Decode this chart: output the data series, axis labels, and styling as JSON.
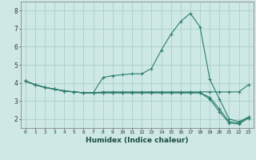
{
  "xlabel": "Humidex (Indice chaleur)",
  "background_color": "#cde8e5",
  "line_color": "#2e7d6e",
  "grid_color": "#aacfcb",
  "xlim": [
    -0.5,
    23.5
  ],
  "ylim": [
    1.5,
    8.5
  ],
  "yticks": [
    2,
    3,
    4,
    5,
    6,
    7,
    8
  ],
  "xticks": [
    0,
    1,
    2,
    3,
    4,
    5,
    6,
    7,
    8,
    9,
    10,
    11,
    12,
    13,
    14,
    15,
    16,
    17,
    18,
    19,
    20,
    21,
    22,
    23
  ],
  "line_main": [
    4.1,
    3.9,
    3.75,
    3.65,
    3.55,
    3.5,
    3.45,
    3.45,
    4.3,
    4.4,
    4.45,
    4.5,
    4.5,
    4.8,
    5.8,
    6.7,
    7.4,
    7.85,
    7.1,
    4.2,
    3.1,
    2.0,
    1.85,
    2.1
  ],
  "line_flat": [
    4.1,
    3.9,
    3.75,
    3.65,
    3.55,
    3.5,
    3.45,
    3.45,
    3.5,
    3.5,
    3.5,
    3.5,
    3.5,
    3.5,
    3.5,
    3.5,
    3.5,
    3.5,
    3.5,
    3.5,
    3.5,
    3.5,
    3.5,
    3.9
  ],
  "line_dec1": [
    4.1,
    3.9,
    3.75,
    3.65,
    3.55,
    3.5,
    3.45,
    3.45,
    3.45,
    3.45,
    3.45,
    3.45,
    3.45,
    3.45,
    3.45,
    3.45,
    3.45,
    3.45,
    3.45,
    3.2,
    2.55,
    1.85,
    1.78,
    2.1
  ],
  "line_dec2": [
    4.1,
    3.9,
    3.75,
    3.65,
    3.55,
    3.5,
    3.45,
    3.45,
    3.45,
    3.45,
    3.45,
    3.45,
    3.45,
    3.45,
    3.45,
    3.45,
    3.45,
    3.45,
    3.45,
    3.1,
    2.4,
    1.78,
    1.72,
    2.05
  ]
}
